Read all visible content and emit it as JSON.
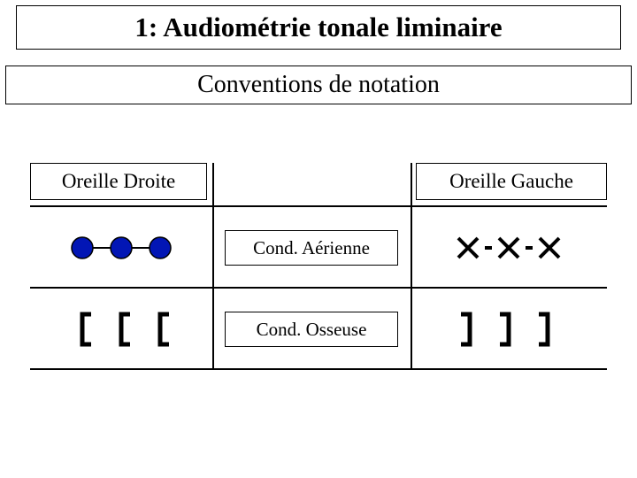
{
  "title": "1: Audiométrie tonale liminaire",
  "subtitle": "Conventions de notation",
  "headers": {
    "right_ear": "Oreille Droite",
    "left_ear": "Oreille Gauche"
  },
  "rows": {
    "air": {
      "label": "Cond. Aérienne"
    },
    "bone": {
      "label": "Cond. Osseuse"
    }
  },
  "symbols": {
    "right_air": {
      "type": "circles-line",
      "count": 3,
      "radius": 12,
      "fill": "#0216b5",
      "stroke": "#000000",
      "stroke_width": 1.5,
      "line_color": "#000000",
      "line_width": 2,
      "spacing": 44
    },
    "left_air": {
      "type": "x-dash",
      "count": 3,
      "stroke": "#000000",
      "stroke_width": 4,
      "x_halfsize": 11,
      "spacing": 46,
      "dash_len": 8
    },
    "right_bone": {
      "type": "bracket",
      "dir": "open-right",
      "count": 3,
      "stroke": "#000000",
      "stroke_width": 5,
      "height": 34,
      "lip": 10,
      "spacing": 44
    },
    "left_bone": {
      "type": "bracket",
      "dir": "open-left",
      "count": 3,
      "stroke": "#000000",
      "stroke_width": 5,
      "height": 34,
      "lip": 10,
      "spacing": 44
    }
  },
  "layout": {
    "vlines_height_total": 284
  }
}
